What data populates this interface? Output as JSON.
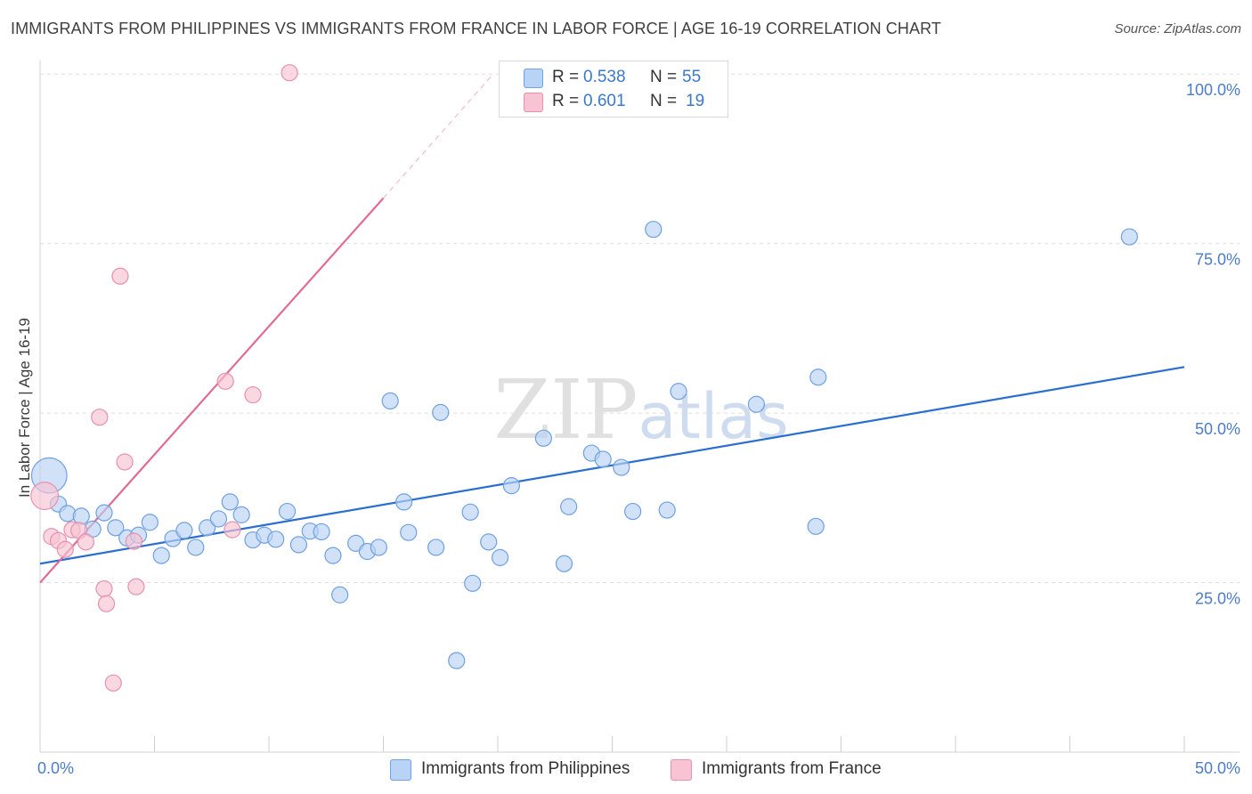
{
  "title": "IMMIGRANTS FROM PHILIPPINES VS IMMIGRANTS FROM FRANCE IN LABOR FORCE | AGE 16-19 CORRELATION CHART",
  "source": "Source: ZipAtlas.com",
  "watermark": "ZIPatlas",
  "legend": {
    "r_label": "R =",
    "n_label": "N =",
    "philippines": {
      "r": "0.538",
      "n": "55"
    },
    "france": {
      "r": "0.601",
      "n": "19"
    }
  },
  "colors": {
    "philippines_fill": "#b8d3f5",
    "philippines_stroke": "#6fa0e0",
    "philippines_line": "#2a6fcf",
    "france_fill": "#f8c3d3",
    "france_stroke": "#e890ad",
    "france_line": "#e26b93",
    "tick_text": "#4a7cc9",
    "grid": "#dedede"
  },
  "chart_data": {
    "type": "scatter",
    "title": "IMMIGRANTS FROM PHILIPPINES VS IMMIGRANTS FROM FRANCE IN LABOR FORCE | AGE 16-19 CORRELATION CHART",
    "xlabel": "",
    "ylabel": "In Labor Force | Age 16-19",
    "xlim": [
      0,
      50
    ],
    "ylim": [
      0,
      102
    ],
    "x_tick_labels": [
      "0.0%",
      "50.0%"
    ],
    "y_ticks": [
      25,
      50,
      75,
      100
    ],
    "y_tick_labels": [
      "25.0%",
      "50.0%",
      "75.0%",
      "100.0%"
    ],
    "grid": true,
    "legend_entries": [
      "Immigrants from Philippines",
      "Immigrants from France"
    ],
    "series": [
      {
        "name": "Immigrants from Philippines",
        "points": [
          [
            0.4,
            40.8,
            2.2
          ],
          [
            0.8,
            36.6,
            1
          ],
          [
            1.2,
            35.2,
            1
          ],
          [
            1.8,
            34.8,
            1
          ],
          [
            2.3,
            32.9,
            1
          ],
          [
            2.8,
            35.3,
            1
          ],
          [
            3.3,
            33.1,
            1
          ],
          [
            3.8,
            31.6,
            1
          ],
          [
            4.3,
            32.0,
            1
          ],
          [
            4.8,
            33.9,
            1
          ],
          [
            5.3,
            29.0,
            1
          ],
          [
            5.8,
            31.5,
            1
          ],
          [
            6.3,
            32.7,
            1
          ],
          [
            6.8,
            30.2,
            1
          ],
          [
            7.3,
            33.1,
            1
          ],
          [
            7.8,
            34.4,
            1
          ],
          [
            8.3,
            36.9,
            1
          ],
          [
            8.8,
            35.0,
            1
          ],
          [
            9.3,
            31.3,
            1
          ],
          [
            9.8,
            32.0,
            1
          ],
          [
            10.3,
            31.4,
            1
          ],
          [
            10.8,
            35.5,
            1
          ],
          [
            11.3,
            30.6,
            1
          ],
          [
            11.8,
            32.6,
            1
          ],
          [
            12.3,
            32.5,
            1
          ],
          [
            12.8,
            29.0,
            1
          ],
          [
            13.1,
            23.2,
            1
          ],
          [
            13.8,
            30.8,
            1
          ],
          [
            14.3,
            29.6,
            1
          ],
          [
            14.8,
            30.2,
            1
          ],
          [
            15.3,
            51.8,
            1
          ],
          [
            15.9,
            36.9,
            1
          ],
          [
            16.1,
            32.4,
            1
          ],
          [
            17.3,
            30.2,
            1
          ],
          [
            17.5,
            50.1,
            1
          ],
          [
            18.2,
            13.5,
            1
          ],
          [
            18.8,
            35.4,
            1
          ],
          [
            18.9,
            24.9,
            1
          ],
          [
            19.6,
            31.0,
            1
          ],
          [
            20.1,
            28.7,
            1
          ],
          [
            20.6,
            39.3,
            1
          ],
          [
            22.0,
            46.3,
            1
          ],
          [
            22.9,
            27.8,
            1
          ],
          [
            23.1,
            36.2,
            1
          ],
          [
            24.1,
            44.1,
            1
          ],
          [
            24.6,
            43.2,
            1
          ],
          [
            25.4,
            42.0,
            1
          ],
          [
            25.9,
            35.5,
            1
          ],
          [
            26.8,
            77.1,
            1
          ],
          [
            27.4,
            35.7,
            1
          ],
          [
            27.9,
            53.2,
            1
          ],
          [
            31.3,
            51.3,
            1
          ],
          [
            33.9,
            33.3,
            1
          ],
          [
            34.0,
            55.3,
            1
          ],
          [
            47.6,
            76.0,
            1
          ]
        ],
        "trend": {
          "x": [
            0,
            50
          ],
          "y": [
            27.8,
            56.8
          ]
        }
      },
      {
        "name": "Immigrants from France",
        "points": [
          [
            0.2,
            37.8,
            1.7
          ],
          [
            0.5,
            31.8,
            1
          ],
          [
            0.8,
            31.2,
            1
          ],
          [
            1.1,
            29.9,
            1
          ],
          [
            1.4,
            32.8,
            1
          ],
          [
            1.7,
            32.7,
            1
          ],
          [
            2.0,
            31.0,
            1
          ],
          [
            2.6,
            49.4,
            1
          ],
          [
            2.8,
            24.1,
            1
          ],
          [
            2.9,
            21.9,
            1
          ],
          [
            3.2,
            10.2,
            1
          ],
          [
            3.5,
            70.2,
            1
          ],
          [
            3.7,
            42.8,
            1
          ],
          [
            4.1,
            31.1,
            1
          ],
          [
            4.2,
            24.4,
            1
          ],
          [
            8.1,
            54.7,
            1
          ],
          [
            8.4,
            32.8,
            1
          ],
          [
            9.3,
            52.7,
            1
          ],
          [
            10.9,
            100.2,
            1
          ]
        ],
        "trend": {
          "x": [
            0,
            15
          ],
          "y": [
            25.0,
            81.7
          ]
        },
        "trend_extension": {
          "x": [
            15,
            19.8
          ],
          "y": [
            81.7,
            100.0
          ]
        }
      }
    ]
  }
}
